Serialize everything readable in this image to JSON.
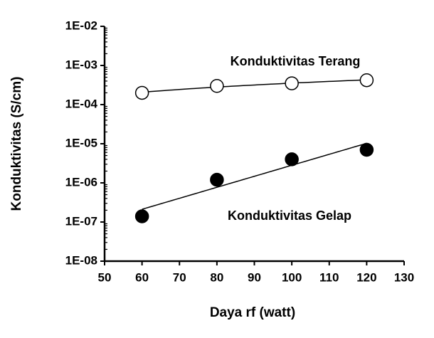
{
  "chart_data": {
    "type": "scatter",
    "x_label": "Daya rf (watt)",
    "y_label": "Konduktivitas (S/cm)",
    "y_scale": "log",
    "xlim": [
      50,
      130
    ],
    "xticks": [
      50,
      60,
      70,
      80,
      90,
      100,
      110,
      120,
      130
    ],
    "ylim": [
      1e-08,
      0.01
    ],
    "yticks": [
      {
        "value": 1e-08,
        "label": "1E-08"
      },
      {
        "value": 1e-07,
        "label": "1E-07"
      },
      {
        "value": 1e-06,
        "label": "1E-06"
      },
      {
        "value": 1e-05,
        "label": "1E-05"
      },
      {
        "value": 0.0001,
        "label": "1E-04"
      },
      {
        "value": 0.001,
        "label": "1E-03"
      },
      {
        "value": 0.01,
        "label": "1E-02"
      }
    ],
    "series": [
      {
        "name": "Konduktivitas Terang",
        "color": "#ffffff",
        "trendline": "power",
        "x": [
          60,
          80,
          100,
          120
        ],
        "values": [
          0.0002,
          0.0003,
          0.00035,
          0.00042
        ]
      },
      {
        "name": "Konduktivitas Gelap",
        "color": "#000000",
        "trendline": "exponential",
        "x": [
          60,
          80,
          100,
          120
        ],
        "values": [
          1.4e-07,
          1.2e-06,
          4e-06,
          7e-06
        ]
      }
    ]
  }
}
